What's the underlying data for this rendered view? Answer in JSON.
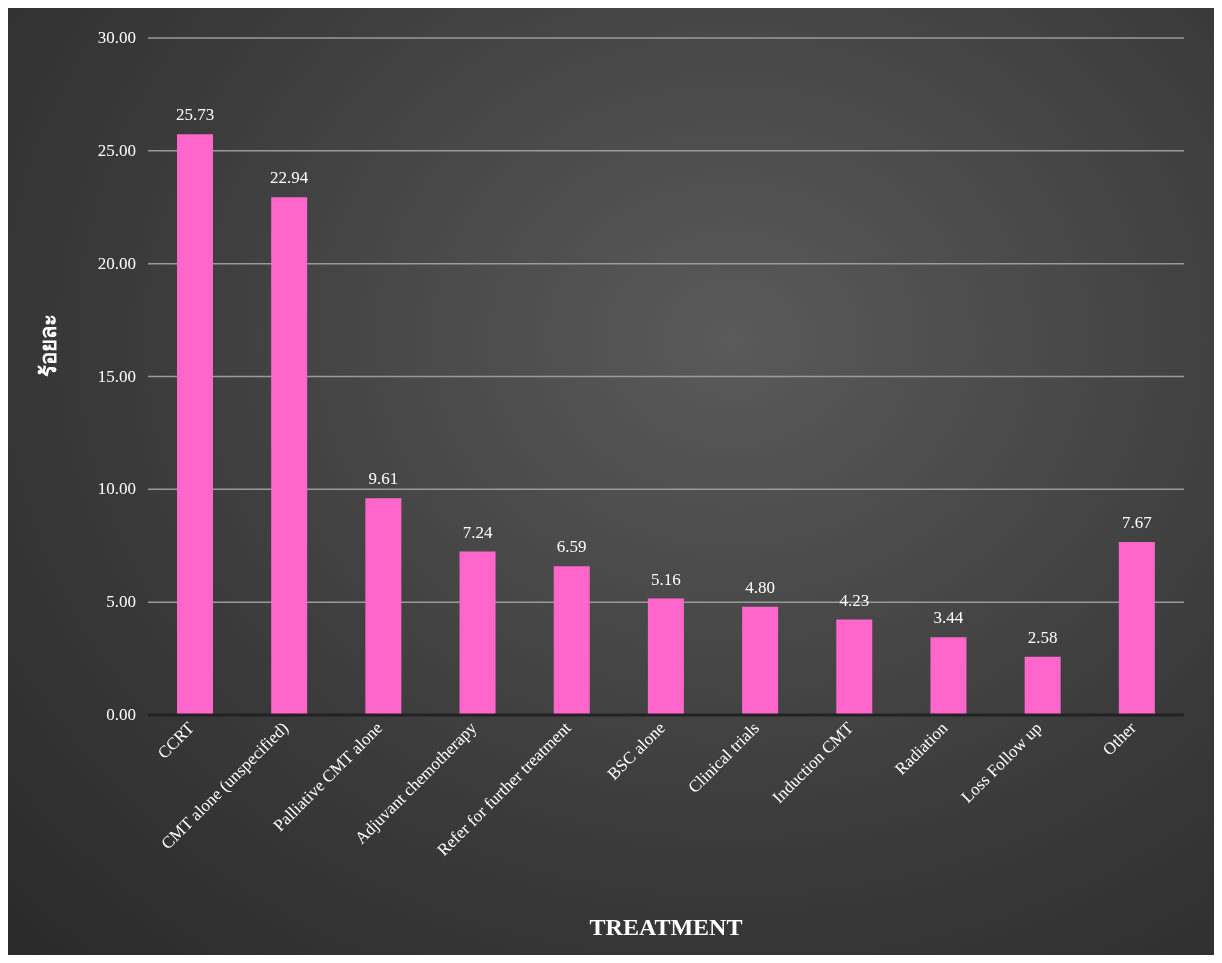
{
  "chart_data": {
    "type": "bar",
    "xlabel": "TREATMENT",
    "ylabel": "ร้อยละ",
    "categories": [
      "CCRT",
      "CMT alone (unspecified)",
      "Palliative CMT alone",
      "Adjuvant chemotherapy",
      "Refer for further treatment",
      "BSC alone",
      "Clinical trials",
      "Induction CMT",
      "Radiation",
      "Loss Follow up",
      "Other"
    ],
    "values": [
      25.73,
      22.94,
      9.61,
      7.24,
      6.59,
      5.16,
      4.8,
      4.23,
      3.44,
      2.58,
      7.67
    ],
    "value_labels": [
      "25.73",
      "22.94",
      "9.61",
      "7.24",
      "6.59",
      "5.16",
      "4.80",
      "4.23",
      "3.44",
      "2.58",
      "7.67"
    ],
    "color": "#ff66cc",
    "ylim": [
      0,
      30
    ],
    "yticks": [
      {
        "value": 0,
        "label": "0.00"
      },
      {
        "value": 5,
        "label": "5.00"
      },
      {
        "value": 10,
        "label": "10.00"
      },
      {
        "value": 15,
        "label": "15.00"
      },
      {
        "value": 20,
        "label": "20.00"
      },
      {
        "value": 25,
        "label": "25.00"
      },
      {
        "value": 30,
        "label": "30.00"
      }
    ],
    "grid": "y",
    "legend": false
  }
}
